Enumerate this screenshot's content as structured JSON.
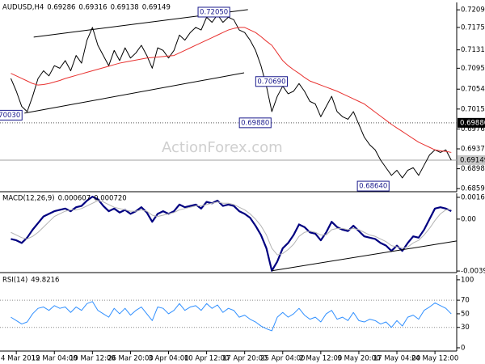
{
  "chart_data": [
    {
      "type": "line",
      "title": "AUDUSD,H4",
      "ohlc": [
        0.69286,
        0.69316,
        0.69138,
        0.69149
      ],
      "watermark": "ActionForex.com",
      "ylim": [
        0.6853,
        0.7224
      ],
      "yticks": [
        0.72095,
        {
          "value": 0.7175,
          "label": "0.71750"
        },
        {
          "value": 0.7131,
          "label": "0.71310"
        },
        {
          "value": 0.7095,
          "label": "0.70950"
        },
        {
          "value": 0.7054,
          "label": "0.70540"
        },
        {
          "value": 0.7015,
          "label": "0.70150"
        },
        {
          "value": 0.6976,
          "label": "0.69760"
        },
        {
          "value": 0.6937,
          "label": "0.69370"
        },
        {
          "value": 0.6898,
          "label": "0.68980"
        },
        {
          "value": 0.6859,
          "label": "0.68590"
        }
      ],
      "levels": [
        {
          "value": 0.6988,
          "label": "0.69880",
          "color": "#000000"
        }
      ],
      "current_color": "#c8c8c8",
      "series": [
        {
          "color": "#000000",
          "values": [
            0.7075,
            0.705,
            0.702,
            0.701,
            0.704,
            0.7075,
            0.709,
            0.708,
            0.71,
            0.7095,
            0.711,
            0.709,
            0.712,
            0.7105,
            0.715,
            0.7175,
            0.714,
            0.712,
            0.71,
            0.713,
            0.711,
            0.7135,
            0.7115,
            0.7125,
            0.714,
            0.712,
            0.7095,
            0.7135,
            0.713,
            0.7115,
            0.713,
            0.716,
            0.715,
            0.7165,
            0.7175,
            0.717,
            0.7195,
            0.7185,
            0.72,
            0.7185,
            0.7195,
            0.719,
            0.717,
            0.7165,
            0.715,
            0.713,
            0.71,
            0.706,
            0.701,
            0.704,
            0.706,
            0.7045,
            0.705,
            0.7065,
            0.705,
            0.703,
            0.7025,
            0.7,
            0.702,
            0.704,
            0.701,
            0.7,
            0.6995,
            0.701,
            0.6985,
            0.696,
            0.6945,
            0.6935,
            0.6915,
            0.69,
            0.6885,
            0.6895,
            0.688,
            0.6895,
            0.69,
            0.6885,
            0.6905,
            0.6925,
            0.6935,
            0.693,
            0.6935,
            0.69149
          ]
        },
        {
          "color": "#e8312f",
          "values": [
            0.7085,
            0.708,
            0.7075,
            0.707,
            0.7065,
            0.7062,
            0.7063,
            0.7065,
            0.7068,
            0.7071,
            0.7075,
            0.7078,
            0.7081,
            0.7084,
            0.7087,
            0.709,
            0.7093,
            0.7096,
            0.7099,
            0.7102,
            0.7105,
            0.7107,
            0.7109,
            0.7111,
            0.7113,
            0.7115,
            0.7116,
            0.7117,
            0.7118,
            0.7119,
            0.712,
            0.7125,
            0.713,
            0.7135,
            0.714,
            0.7145,
            0.715,
            0.7155,
            0.716,
            0.7165,
            0.717,
            0.7173,
            0.7175,
            0.7175,
            0.717,
            0.7165,
            0.7157,
            0.7148,
            0.714,
            0.7125,
            0.711,
            0.71,
            0.7092,
            0.7085,
            0.7077,
            0.707,
            0.7066,
            0.7062,
            0.7058,
            0.7054,
            0.705,
            0.7045,
            0.704,
            0.7035,
            0.703,
            0.7025,
            0.7017,
            0.7009,
            0.7001,
            0.6993,
            0.6985,
            0.6978,
            0.6971,
            0.6964,
            0.6957,
            0.695,
            0.6945,
            0.694,
            0.6935,
            0.6933,
            0.6932,
            0.693
          ]
        }
      ],
      "trendlines": [
        {
          "color": "#000000",
          "x": [
            4.2,
            43.6
          ],
          "y": [
            0.7156,
            0.721
          ]
        },
        {
          "color": "#000000",
          "x": [
            2.5,
            42.9
          ],
          "y": [
            0.7007,
            0.7086
          ]
        }
      ],
      "annotations": [
        {
          "x": 40.4,
          "value": 0.7205,
          "label": "0.72050"
        },
        {
          "x": 51,
          "value": 0.7069,
          "label": "0.70690"
        },
        {
          "x": 48,
          "value": 0.6988,
          "label": "0.69880"
        },
        {
          "x": 69.7,
          "value": 0.6864,
          "label": "0.68640"
        },
        {
          "x": 2.2,
          "value": 0.7003,
          "label": "0.70030"
        }
      ]
    },
    {
      "type": "line",
      "title": "MACD(12,26,9)",
      "ylim": [
        -0.00404,
        0.00195
      ],
      "yticks": [
        0.001646,
        {
          "value": 0,
          "label": "0.00"
        },
        -0.003922
      ],
      "series": [
        {
          "color": "#000080",
          "width": 2.2,
          "values": [
            -0.0015,
            -0.0016,
            -0.0018,
            -0.0014,
            -0.0008,
            -0.0003,
            0.0002,
            0.0004,
            0.0006,
            0.0007,
            0.0008,
            0.0006,
            0.0009,
            0.001,
            0.0014,
            0.0017,
            0.0015,
            0.001,
            0.0006,
            0.0008,
            0.0005,
            0.0007,
            0.0004,
            0.0006,
            0.0009,
            0.0005,
            -0.0002,
            0.0004,
            0.0006,
            0.0004,
            0.0006,
            0.0011,
            0.0009,
            0.001,
            0.0011,
            0.0008,
            0.0013,
            0.0012,
            0.0014,
            0.001,
            0.0011,
            0.001,
            0.0006,
            0.0004,
            0.0001,
            -0.0005,
            -0.0012,
            -0.0022,
            -0.0039,
            -0.0032,
            -0.0022,
            -0.0018,
            -0.0012,
            -0.0004,
            -0.0006,
            -0.001,
            -0.0011,
            -0.0016,
            -0.001,
            -0.0002,
            -0.0006,
            -0.0008,
            -0.0009,
            -0.0005,
            -0.0009,
            -0.0013,
            -0.0014,
            -0.0015,
            -0.0018,
            -0.002,
            -0.0024,
            -0.002,
            -0.0024,
            -0.0018,
            -0.0013,
            -0.0014,
            -0.0008,
            0.0,
            0.0008,
            0.0009,
            0.0008,
            0.000607
          ]
        },
        {
          "color": "#b4b4b4",
          "width": 1,
          "values": [
            -0.001,
            -0.0012,
            -0.0014,
            -0.0015,
            -0.0013,
            -0.001,
            -0.0006,
            -0.0002,
            0.0002,
            0.0004,
            0.0006,
            0.0007,
            0.0007,
            0.0008,
            0.001,
            0.0012,
            0.0014,
            0.0013,
            0.0011,
            0.0009,
            0.0008,
            0.0007,
            0.0006,
            0.0006,
            0.0007,
            0.0006,
            0.0003,
            0.0002,
            0.0003,
            0.0004,
            0.0005,
            0.0007,
            0.0008,
            0.0009,
            0.001,
            0.001,
            0.0011,
            0.0012,
            0.0013,
            0.0012,
            0.0012,
            0.0011,
            0.0009,
            0.0007,
            0.0004,
            0.0,
            -0.0005,
            -0.0012,
            -0.0022,
            -0.0027,
            -0.0026,
            -0.0023,
            -0.0019,
            -0.0013,
            -0.001,
            -0.0009,
            -0.001,
            -0.0012,
            -0.0012,
            -0.0008,
            -0.0007,
            -0.0007,
            -0.0008,
            -0.0007,
            -0.0008,
            -0.001,
            -0.0012,
            -0.0013,
            -0.0015,
            -0.0017,
            -0.002,
            -0.0021,
            -0.0022,
            -0.0021,
            -0.0018,
            -0.0016,
            -0.0012,
            -0.0007,
            -0.0001,
            0.0004,
            0.0007,
            0.00072
          ],
          "value_labels": [
            null,
            null,
            null,
            null,
            null,
            null,
            null,
            null,
            null,
            null,
            null,
            null,
            null,
            null,
            null,
            null,
            null,
            null,
            null,
            null,
            null,
            null,
            null,
            null,
            null,
            null,
            null,
            null,
            null,
            null,
            null,
            null,
            null,
            null,
            null,
            null,
            null,
            null,
            null,
            null,
            null,
            null,
            null,
            null,
            null,
            null,
            null,
            null,
            null,
            null,
            null,
            null,
            null,
            null,
            null,
            null,
            null,
            null,
            null,
            null,
            null,
            null,
            null,
            null,
            null,
            null,
            null,
            null,
            null,
            null,
            null,
            null,
            null,
            null,
            null,
            null,
            null,
            null,
            null,
            null,
            null,
            "0.000720"
          ]
        }
      ],
      "trendlines": [
        {
          "color": "#000000",
          "x": [
            48,
            82
          ],
          "y": [
            -0.0039,
            -0.00165
          ]
        }
      ]
    },
    {
      "type": "line",
      "title": "RSI(14)",
      "ylim": [
        -4.8,
        107
      ],
      "yticks": [
        100,
        70,
        50,
        30,
        0
      ],
      "levels": [
        70,
        30
      ],
      "categories": [
        null,
        "4 Mar 2019",
        null,
        null,
        null,
        null,
        null,
        null,
        "12 Mar 04:00",
        null,
        null,
        null,
        null,
        null,
        null,
        "19 Mar 12:00",
        null,
        null,
        null,
        null,
        null,
        null,
        "26 Mar 20:00",
        null,
        null,
        null,
        null,
        null,
        null,
        "3 Apr 04:00",
        null,
        null,
        null,
        null,
        null,
        null,
        "10 Apr 12:00",
        null,
        null,
        null,
        null,
        null,
        null,
        "17 Apr 20:00",
        null,
        null,
        null,
        null,
        null,
        null,
        "25 Apr 04:00",
        null,
        null,
        null,
        null,
        null,
        null,
        "2 May 12:00",
        null,
        null,
        null,
        null,
        null,
        null,
        "9 May 20:00",
        null,
        null,
        null,
        null,
        null,
        null,
        "17 May 04:00",
        null,
        null,
        null,
        null,
        null,
        null,
        "24 May 12:00",
        null,
        null,
        null
      ],
      "series": [
        {
          "color": "#2f8fff",
          "width": 1,
          "values": [
            45,
            40,
            35,
            38,
            50,
            58,
            60,
            55,
            62,
            58,
            60,
            52,
            60,
            55,
            65,
            68,
            55,
            50,
            45,
            58,
            50,
            58,
            48,
            55,
            60,
            50,
            40,
            60,
            58,
            50,
            55,
            65,
            55,
            60,
            62,
            55,
            65,
            58,
            63,
            52,
            58,
            55,
            45,
            48,
            42,
            38,
            32,
            28,
            25,
            45,
            52,
            45,
            50,
            58,
            48,
            42,
            45,
            38,
            50,
            55,
            42,
            45,
            40,
            52,
            40,
            38,
            42,
            40,
            35,
            38,
            30,
            40,
            32,
            45,
            48,
            42,
            55,
            60,
            66,
            62,
            58,
            49.8216
          ]
        }
      ]
    }
  ]
}
